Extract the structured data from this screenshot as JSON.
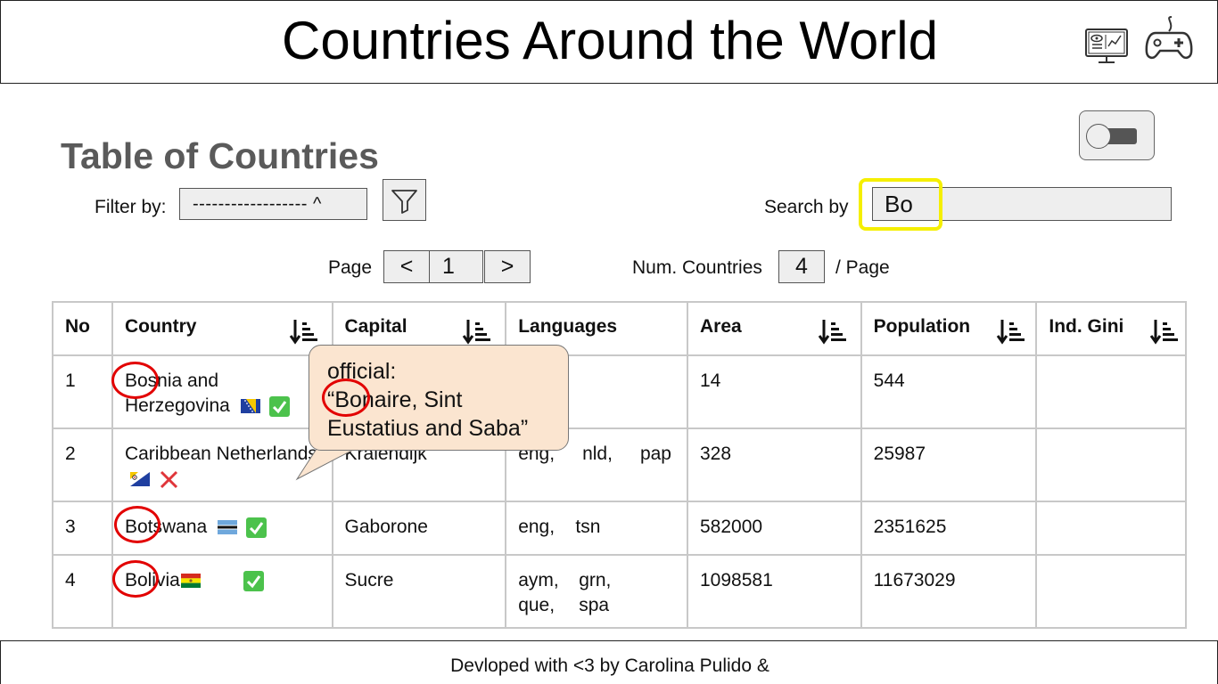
{
  "app": {
    "title": "Countries Around the World",
    "icons": [
      "monitor-dashboard-icon",
      "gamepad-icon"
    ]
  },
  "main": {
    "section_title": "Table of Countries",
    "filter": {
      "label": "Filter by:",
      "value": "------------------ ^"
    },
    "search": {
      "label": "Search by",
      "value": "Bo"
    },
    "pagination": {
      "page_label": "Page",
      "prev": "<",
      "current": "1",
      "next": ">"
    },
    "per_page": {
      "label": "Num. Countries",
      "value": "4",
      "suffix": "/ Page"
    }
  },
  "table": {
    "headers": [
      "No",
      "Country",
      "Capital",
      "Languages",
      "Area",
      "Population",
      "Ind. Gini"
    ],
    "rows": [
      {
        "no": "1",
        "country": "Bosnia and Herzegovina",
        "capital": "",
        "languages": [],
        "area": "14",
        "population": "544",
        "gini": "",
        "independent": true
      },
      {
        "no": "2",
        "country": "Caribbean Netherlands",
        "capital": "Kralendijk",
        "languages": [
          "eng,",
          "nld,",
          "pap"
        ],
        "area": "328",
        "population": "25987",
        "gini": "",
        "independent": false
      },
      {
        "no": "3",
        "country": "Botswana",
        "capital": "Gaborone",
        "languages": [
          "eng,",
          "tsn"
        ],
        "area": "582000",
        "population": "2351625",
        "gini": "",
        "independent": true
      },
      {
        "no": "4",
        "country": "Bolivia",
        "capital": "Sucre",
        "languages": [
          "aym,",
          "grn,",
          "que,",
          "spa"
        ],
        "area": "1098581",
        "population": "11673029",
        "gini": "",
        "independent": true
      }
    ]
  },
  "tooltip": {
    "line1": "official:",
    "line2": "“Bonaire, Sint",
    "line3": "Eustatius and Saba”"
  },
  "footer": {
    "text": "Devloped with <3 by Carolina Pulido &"
  },
  "colors": {
    "highlight": "#f5ef00",
    "annotation": "#e20000",
    "check": "#4cc24c",
    "cross": "#e0353a",
    "tooltip_bg": "#fbe5d0"
  }
}
